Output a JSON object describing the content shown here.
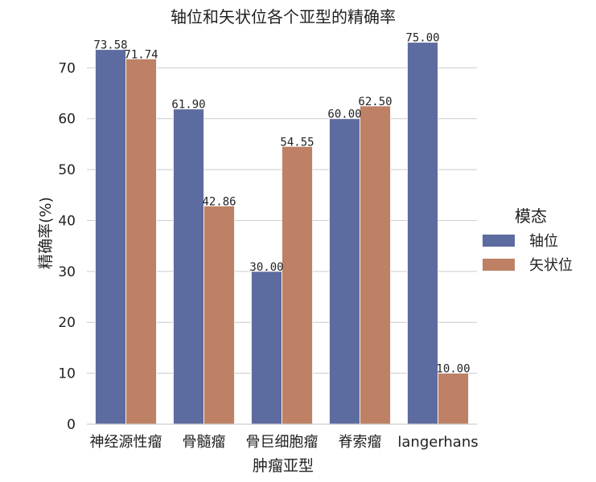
{
  "chart_data": {
    "type": "bar",
    "title": "轴位和矢状位各个亚型的精确率",
    "xlabel": "肿瘤亚型",
    "ylabel": "精确率(%)",
    "categories": [
      "神经源性瘤",
      "骨髓瘤",
      "骨巨细胞瘤",
      "脊索瘤",
      "langerhans"
    ],
    "series": [
      {
        "name": "轴位",
        "color": "#5d6ca0",
        "values": [
          73.58,
          61.9,
          30.0,
          60.0,
          75.0
        ]
      },
      {
        "name": "矢状位",
        "color": "#be8166",
        "values": [
          71.74,
          42.86,
          54.55,
          62.5,
          10.0
        ]
      }
    ],
    "value_labels": [
      [
        "73.58",
        "61.90",
        "30.00",
        "60.00",
        "75.00"
      ],
      [
        "71.74",
        "42.86",
        "54.55",
        "62.50",
        "10.00"
      ]
    ],
    "ylim": [
      0,
      77
    ],
    "yticks": [
      0,
      10,
      20,
      30,
      40,
      50,
      60,
      70
    ],
    "ytick_labels": [
      "0",
      "10",
      "20",
      "30",
      "40",
      "50",
      "60",
      "70"
    ],
    "grid": "horizontal",
    "legend": {
      "title": "模态",
      "position": "right"
    }
  }
}
